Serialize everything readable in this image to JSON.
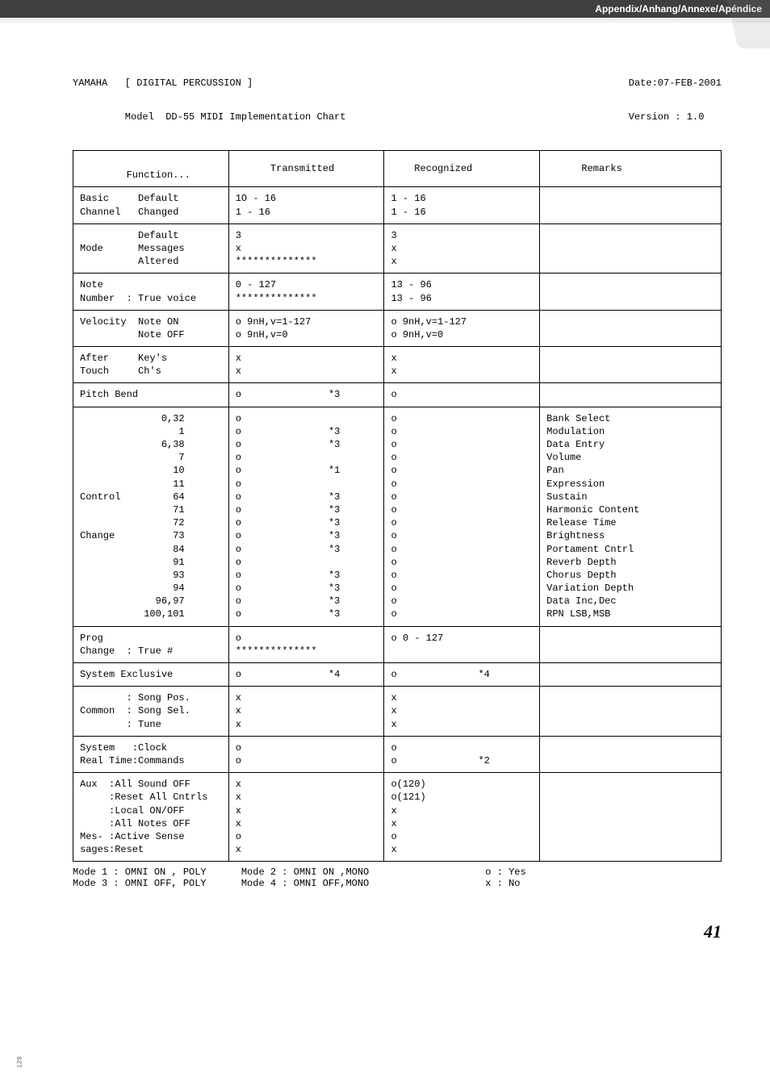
{
  "appendix_label": "Appendix/Anhang/Annexe/Apéndice",
  "title_left": "YAMAHA   [ DIGITAL PERCUSSION ]",
  "title_model": "         Model  DD-55 MIDI Implementation Chart",
  "date_line": "Date:07-FEB-2001",
  "version_line": "Version : 1.0",
  "header": {
    "function": "\n        Function...",
    "transmitted": "      Transmitted",
    "recognized": "    Recognized",
    "remarks": "      Remarks"
  },
  "rows": [
    {
      "f": "Basic     Default\nChannel   Changed",
      "t": "1O - 16\n1 - 16",
      "r": "1 - 16\n1 - 16",
      "m": ""
    },
    {
      "f": "          Default\nMode      Messages\n          Altered",
      "t": "3\nx\n**************",
      "r": "3\nx\nx",
      "m": ""
    },
    {
      "f": "Note\nNumber  : True voice",
      "t": "0 - 127\n**************",
      "r": "13 - 96\n13 - 96",
      "m": ""
    },
    {
      "f": "Velocity  Note ON\n          Note OFF",
      "t": "o 9nH,v=1-127\no 9nH,v=0",
      "r": "o 9nH,v=1-127\no 9nH,v=0",
      "m": ""
    },
    {
      "f": "After     Key's\nTouch     Ch's",
      "t": "x\nx",
      "r": "x\nx",
      "m": ""
    },
    {
      "f": "Pitch Bend",
      "t": "o               *3",
      "r": "o",
      "m": ""
    },
    {
      "f": "              0,32\n                 1\n              6,38\n                 7\n                10\n                11\nControl         64\n                71\n                72\nChange          73\n                84\n                91\n                93\n                94\n             96,97\n           100,101",
      "t": "o\no               *3\no               *3\no\no               *1\no\no               *3\no               *3\no               *3\no               *3\no               *3\no\no               *3\no               *3\no               *3\no               *3",
      "r": "o\no\no\no\no\no\no\no\no\no\no\no\no\no\no\no",
      "m": "Bank Select\nModulation\nData Entry\nVolume\nPan\nExpression\nSustain\nHarmonic Content\nRelease Time\nBrightness\nPortament Cntrl\nReverb Depth\nChorus Depth\nVariation Depth\nData Inc,Dec\nRPN LSB,MSB"
    },
    {
      "f": "Prog\nChange  : True #",
      "t": "o\n**************",
      "r": "o 0 - 127",
      "m": ""
    },
    {
      "f": "System Exclusive",
      "t": "o               *4",
      "r": "o              *4",
      "m": ""
    },
    {
      "f": "        : Song Pos.\nCommon  : Song Sel.\n        : Tune",
      "t": "x\nx\nx",
      "r": "x\nx\nx",
      "m": ""
    },
    {
      "f": "System   :Clock\nReal Time:Commands",
      "t": "o\no",
      "r": "o\no              *2",
      "m": ""
    },
    {
      "f": "Aux  :All Sound OFF\n     :Reset All Cntrls\n     :Local ON/OFF\n     :All Notes OFF\nMes- :Active Sense\nsages:Reset",
      "t": "x\nx\nx\nx\no\nx",
      "r": "o(120)\no(121)\nx\nx\no\nx",
      "m": ""
    }
  ],
  "footer_modes_left": "Mode 1 : OMNI ON , POLY      Mode 2 : OMNI ON ,MONO                    o : Yes\nMode 3 : OMNI OFF, POLY      Mode 4 : OMNI OFF,MONO                    x : No",
  "page_number": "41",
  "side_number": "129"
}
